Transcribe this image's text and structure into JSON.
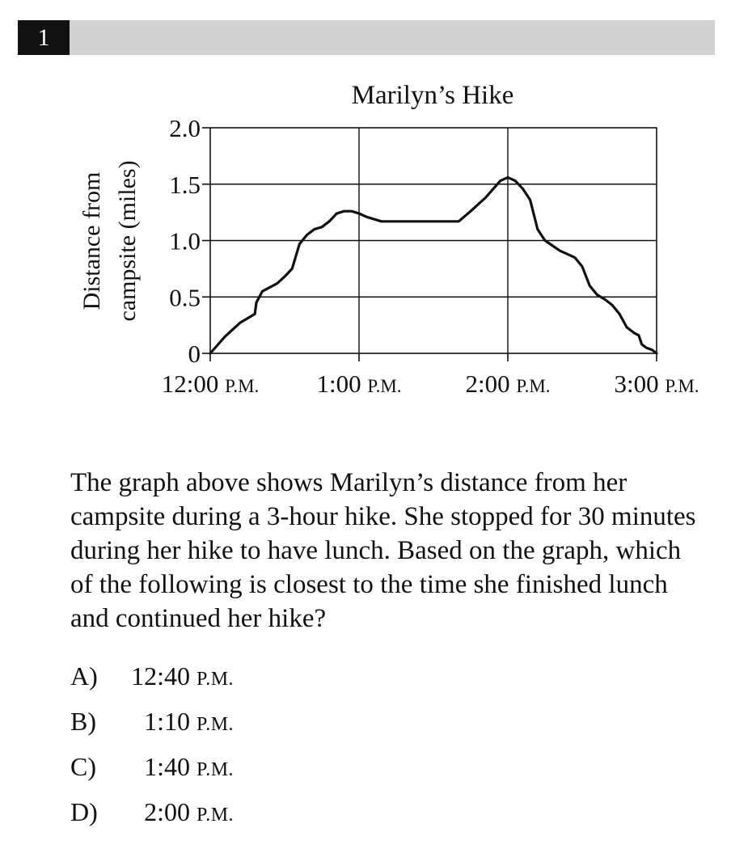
{
  "question": {
    "number": "1",
    "text": "The graph above shows Marilyn’s distance from her campsite during a 3-hour hike.  She stopped for 30 minutes during her hike to have lunch.  Based on the graph, which of the following is closest to the time she finished lunch and continued her hike?"
  },
  "choices": [
    {
      "letter": "A)",
      "time": "12:40",
      "suffix": "P.M."
    },
    {
      "letter": "B)",
      "time": "1:10",
      "suffix": "P.M."
    },
    {
      "letter": "C)",
      "time": "1:40",
      "suffix": "P.M."
    },
    {
      "letter": "D)",
      "time": "2:00",
      "suffix": "P.M."
    }
  ],
  "chart_data": {
    "type": "line",
    "title": "Marilyn’s Hike",
    "ylabel_lines": [
      "Distance from",
      "campsite (miles)"
    ],
    "xlabel": "",
    "x_unit": "hours after 12:00 P.M.",
    "xlim": [
      0,
      3
    ],
    "ylim": [
      0,
      2
    ],
    "grid": true,
    "x_ticks": [
      {
        "value": 0,
        "time": "12:00",
        "suffix": "P.M."
      },
      {
        "value": 1,
        "time": "1:00",
        "suffix": "P.M."
      },
      {
        "value": 2,
        "time": "2:00",
        "suffix": "P.M."
      },
      {
        "value": 3,
        "time": "3:00",
        "suffix": "P.M."
      }
    ],
    "y_ticks": [
      {
        "value": 0,
        "label": "0"
      },
      {
        "value": 0.5,
        "label": "0.5"
      },
      {
        "value": 1,
        "label": "1.0"
      },
      {
        "value": 1.5,
        "label": "1.5"
      },
      {
        "value": 2,
        "label": "2.0"
      }
    ],
    "series": [
      {
        "x": [
          0,
          0.1,
          0.2,
          0.3,
          0.31,
          0.35,
          0.45,
          0.5,
          0.55,
          0.6,
          0.65,
          0.7,
          0.75,
          0.8,
          0.85,
          0.9,
          0.95,
          1.0,
          1.05,
          1.15,
          1.3,
          1.5,
          1.67,
          1.75,
          1.85,
          1.95,
          2.0,
          2.05,
          2.1,
          2.15,
          2.2,
          2.25,
          2.35,
          2.45,
          2.5,
          2.55,
          2.6,
          2.65,
          2.7,
          2.75,
          2.8,
          2.85,
          2.88,
          2.9,
          2.93,
          2.97,
          3.0
        ],
        "y": [
          0,
          0.15,
          0.27,
          0.35,
          0.45,
          0.55,
          0.62,
          0.68,
          0.75,
          0.97,
          1.05,
          1.1,
          1.12,
          1.17,
          1.24,
          1.26,
          1.26,
          1.24,
          1.21,
          1.17,
          1.17,
          1.17,
          1.17,
          1.26,
          1.38,
          1.53,
          1.56,
          1.53,
          1.46,
          1.36,
          1.1,
          1.0,
          0.91,
          0.85,
          0.77,
          0.6,
          0.52,
          0.48,
          0.43,
          0.35,
          0.23,
          0.18,
          0.16,
          0.08,
          0.05,
          0.03,
          0.0
        ]
      }
    ]
  }
}
